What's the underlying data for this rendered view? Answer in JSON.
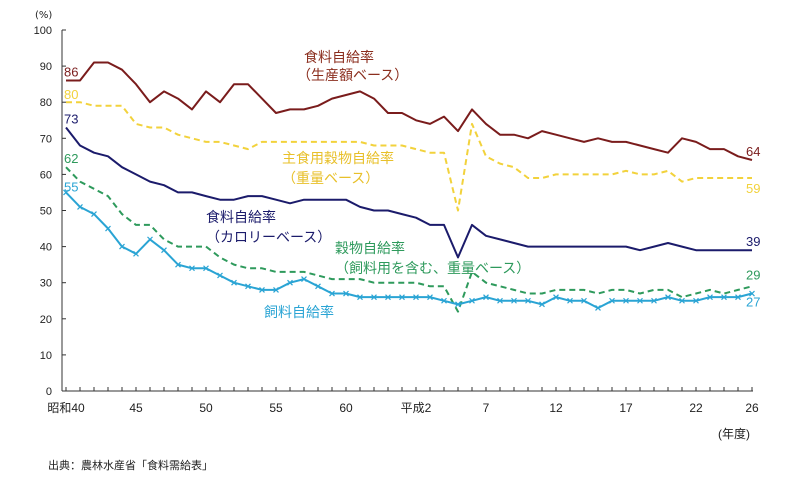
{
  "chart_data": {
    "type": "line",
    "title": "",
    "ylabel": "(%)",
    "xlabel": "(年度)",
    "ylim": [
      0,
      100
    ],
    "yticks": [
      0,
      10,
      20,
      30,
      40,
      50,
      60,
      70,
      80,
      90,
      100
    ],
    "x": [
      1965,
      1966,
      1967,
      1968,
      1969,
      1970,
      1971,
      1972,
      1973,
      1974,
      1975,
      1976,
      1977,
      1978,
      1979,
      1980,
      1981,
      1982,
      1983,
      1984,
      1985,
      1986,
      1987,
      1988,
      1989,
      1990,
      1991,
      1992,
      1993,
      1994,
      1995,
      1996,
      1997,
      1998,
      1999,
      2000,
      2001,
      2002,
      2003,
      2004,
      2005,
      2006,
      2007,
      2008,
      2009,
      2010,
      2011,
      2012,
      2013,
      2014
    ],
    "xticks": [
      {
        "x": 1965,
        "label": "昭和40"
      },
      {
        "x": 1970,
        "label": "45"
      },
      {
        "x": 1975,
        "label": "50"
      },
      {
        "x": 1980,
        "label": "55"
      },
      {
        "x": 1985,
        "label": "60"
      },
      {
        "x": 1990,
        "label": "平成2"
      },
      {
        "x": 1995,
        "label": "7"
      },
      {
        "x": 2000,
        "label": "12"
      },
      {
        "x": 2005,
        "label": "17"
      },
      {
        "x": 2010,
        "label": "22"
      },
      {
        "x": 2014,
        "label": "26"
      }
    ],
    "grid": false,
    "series": [
      {
        "name": "食料自給率（生産額ベース）",
        "label_line1": "食料自給率",
        "label_line2": "（生産額ベース）",
        "color": "#7a1c1c",
        "style": "solid",
        "start_label": "86",
        "end_label": "64",
        "values": [
          86,
          86,
          91,
          91,
          89,
          85,
          80,
          83,
          81,
          78,
          83,
          80,
          85,
          85,
          81,
          77,
          78,
          78,
          79,
          81,
          82,
          83,
          81,
          77,
          77,
          75,
          74,
          76,
          72,
          78,
          74,
          71,
          71,
          70,
          72,
          71,
          70,
          69,
          70,
          69,
          69,
          68,
          67,
          66,
          70,
          69,
          67,
          67,
          65,
          64
        ]
      },
      {
        "name": "主食用穀物自給率（重量ベース）",
        "label_line1": "主食用穀物自給率",
        "label_line2": "（重量ベース）",
        "color": "#f2d23c",
        "style": "dashed",
        "start_label": "80",
        "end_label": "59",
        "values": [
          80,
          80,
          79,
          79,
          79,
          74,
          73,
          73,
          71,
          70,
          69,
          69,
          68,
          67,
          69,
          69,
          69,
          69,
          69,
          69,
          69,
          69,
          68,
          68,
          68,
          67,
          66,
          66,
          50,
          74,
          65,
          63,
          62,
          59,
          59,
          60,
          60,
          60,
          60,
          60,
          61,
          60,
          60,
          61,
          58,
          59,
          59,
          59,
          59,
          59
        ]
      },
      {
        "name": "食料自給率（カロリーベース）",
        "label_line1": "食料自給率",
        "label_line2": "（カロリーベース）",
        "color": "#1b1b6b",
        "style": "solid",
        "start_label": "73",
        "end_label": "39",
        "values": [
          73,
          68,
          66,
          65,
          62,
          60,
          58,
          57,
          55,
          55,
          54,
          53,
          53,
          54,
          54,
          53,
          52,
          53,
          53,
          53,
          53,
          51,
          50,
          50,
          49,
          48,
          46,
          46,
          37,
          46,
          43,
          42,
          41,
          40,
          40,
          40,
          40,
          40,
          40,
          40,
          40,
          39,
          40,
          41,
          40,
          39,
          39,
          39,
          39,
          39
        ]
      },
      {
        "name": "穀物自給率（飼料用を含む、重量ベース）",
        "label_line1": "穀物自給率",
        "label_line2": "（飼料用を含む、重量ベース）",
        "color": "#2e9a5c",
        "style": "dashed",
        "start_label": "62",
        "end_label": "29",
        "values": [
          62,
          58,
          56,
          54,
          49,
          46,
          46,
          42,
          40,
          40,
          40,
          37,
          35,
          34,
          34,
          33,
          33,
          33,
          32,
          31,
          31,
          31,
          30,
          30,
          30,
          30,
          29,
          29,
          22,
          33,
          30,
          29,
          28,
          27,
          27,
          28,
          28,
          28,
          27,
          28,
          28,
          27,
          28,
          28,
          26,
          27,
          28,
          27,
          28,
          29
        ]
      },
      {
        "name": "飼料自給率",
        "label_line1": "飼料自給率",
        "label_line2": "",
        "color": "#2aa4d4",
        "style": "solid-markers",
        "start_label": "55",
        "end_label": "27",
        "values": [
          55,
          51,
          49,
          45,
          40,
          38,
          42,
          39,
          35,
          34,
          34,
          32,
          30,
          29,
          28,
          28,
          30,
          31,
          29,
          27,
          27,
          26,
          26,
          26,
          26,
          26,
          26,
          25,
          24,
          25,
          26,
          25,
          25,
          25,
          24,
          26,
          25,
          25,
          23,
          25,
          25,
          25,
          25,
          26,
          25,
          25,
          26,
          26,
          26,
          27
        ]
      }
    ]
  },
  "source_note": "出典：農林水産省「食料需給表」"
}
